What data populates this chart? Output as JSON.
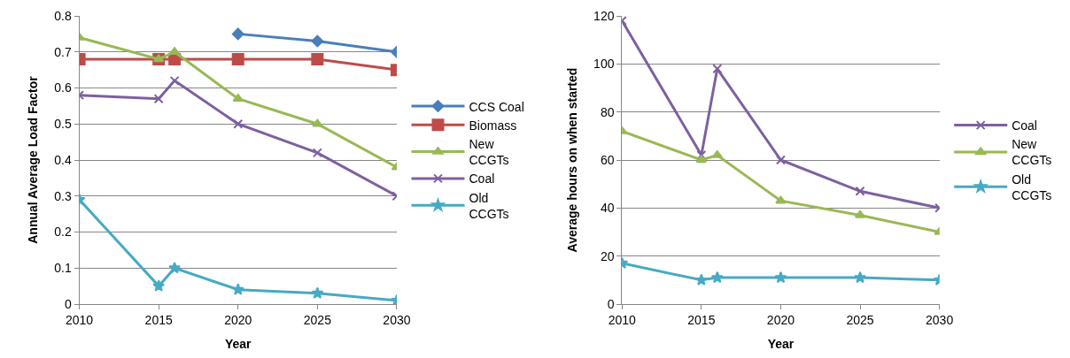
{
  "chart_data": [
    {
      "type": "line",
      "xlabel": "Year",
      "ylabel": "Annual Average Load Factor",
      "x": [
        2010,
        2015,
        2016,
        2020,
        2025,
        2030
      ],
      "xlim": [
        2010,
        2030
      ],
      "xticks": [
        2010,
        2015,
        2020,
        2025,
        2030
      ],
      "ylim": [
        0,
        0.8
      ],
      "yticks": [
        0,
        0.1,
        0.2,
        0.3,
        0.4,
        0.5,
        0.6,
        0.7,
        0.8
      ],
      "grid": "y",
      "legend": "right",
      "line_style": "solid",
      "series": [
        {
          "name": "CCS Coal",
          "color": "#4a7ebb",
          "marker": "diamond",
          "x": [
            2020,
            2025,
            2030
          ],
          "values": [
            0.75,
            0.73,
            0.7
          ]
        },
        {
          "name": "Biomass",
          "color": "#be4b48",
          "marker": "square",
          "values": [
            0.68,
            0.68,
            0.68,
            0.68,
            0.68,
            0.65
          ]
        },
        {
          "name": "New CCGTs",
          "color": "#98b954",
          "marker": "triangle",
          "values": [
            0.74,
            0.68,
            0.7,
            0.57,
            0.5,
            0.38
          ]
        },
        {
          "name": "Coal",
          "color": "#7d60a0",
          "marker": "cross",
          "values": [
            0.58,
            0.57,
            0.62,
            0.5,
            0.42,
            0.3
          ]
        },
        {
          "name": "Old CCGTs",
          "color": "#46aac5",
          "marker": "star",
          "values": [
            0.29,
            0.05,
            0.1,
            0.04,
            0.03,
            0.01
          ]
        }
      ]
    },
    {
      "type": "line",
      "xlabel": "Year",
      "ylabel": "Average hours on when started",
      "x": [
        2010,
        2015,
        2016,
        2020,
        2025,
        2030
      ],
      "xlim": [
        2010,
        2030
      ],
      "xticks": [
        2010,
        2015,
        2020,
        2025,
        2030
      ],
      "ylim": [
        0,
        120
      ],
      "yticks": [
        0,
        20,
        40,
        60,
        80,
        100,
        120
      ],
      "grid": "y",
      "legend": "right",
      "line_style": "solid",
      "series": [
        {
          "name": "Coal",
          "color": "#7d60a0",
          "marker": "cross",
          "values": [
            118,
            62,
            98,
            60,
            47,
            40
          ]
        },
        {
          "name": "New CCGTs",
          "color": "#98b954",
          "marker": "triangle",
          "values": [
            72,
            60,
            62,
            43,
            37,
            30
          ]
        },
        {
          "name": "Old CCGTs",
          "color": "#46aac5",
          "marker": "star",
          "values": [
            17,
            10,
            11,
            11,
            11,
            10
          ]
        }
      ]
    }
  ]
}
